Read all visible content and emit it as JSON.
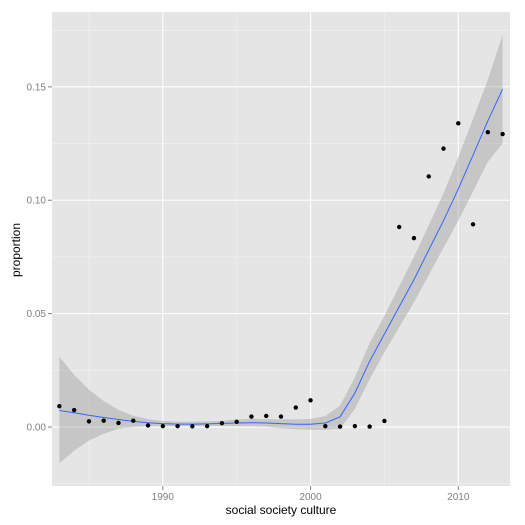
{
  "chart_data": {
    "type": "scatter",
    "xlabel": "social society culture",
    "ylabel": "proportion",
    "xlim": [
      1982.5,
      2013.5
    ],
    "ylim": [
      -0.026,
      0.183
    ],
    "x_ticks": [
      1990,
      2000,
      2010
    ],
    "y_ticks": [
      0.0,
      0.05,
      0.1,
      0.15
    ],
    "x_tick_labels": [
      "1990",
      "2000",
      "2010"
    ],
    "y_tick_labels": [
      "0.00",
      "0.05",
      "0.10",
      "0.15"
    ],
    "grid": true,
    "points": {
      "x": [
        1983,
        1984,
        1985,
        1986,
        1987,
        1988,
        1989,
        1990,
        1991,
        1992,
        1993,
        1994,
        1995,
        1996,
        1997,
        1998,
        1999,
        2000,
        2001,
        2002,
        2003,
        2004,
        2005,
        2006,
        2007,
        2008,
        2009,
        2010,
        2011,
        2012,
        2013
      ],
      "y": [
        0.0092,
        0.0075,
        0.0025,
        0.0028,
        0.0018,
        0.0028,
        0.0007,
        0.0004,
        0.0004,
        0.0003,
        0.0004,
        0.0017,
        0.0023,
        0.0046,
        0.0049,
        0.0046,
        0.0086,
        0.0118,
        0.0004,
        0.0002,
        0.0004,
        0.0002,
        0.0027,
        0.0882,
        0.0833,
        0.1105,
        0.1228,
        0.1339,
        0.0894,
        0.13,
        0.1292
      ],
      "color": "#000000"
    },
    "smooth": {
      "x": [
        1983,
        1984,
        1985,
        1986,
        1987,
        1988,
        1989,
        1990,
        1991,
        1992,
        1993,
        1994,
        1995,
        1996,
        1997,
        1998,
        1999,
        2000,
        2001,
        2002,
        2003,
        2004,
        2005,
        2006,
        2007,
        2008,
        2009,
        2010,
        2011,
        2012,
        2013
      ],
      "y": [
        0.0073,
        0.0063,
        0.0052,
        0.0042,
        0.0033,
        0.0025,
        0.0019,
        0.0015,
        0.0013,
        0.0013,
        0.0014,
        0.0016,
        0.0018,
        0.0019,
        0.0018,
        0.0015,
        0.0012,
        0.0012,
        0.0018,
        0.0045,
        0.015,
        0.029,
        0.041,
        0.053,
        0.065,
        0.078,
        0.091,
        0.105,
        0.12,
        0.135,
        0.149
      ],
      "ymin": [
        -0.016,
        -0.0105,
        -0.006,
        -0.003,
        -0.0008,
        0.0,
        0.0003,
        0.0003,
        0.0003,
        0.0004,
        0.0005,
        0.0004,
        0.0003,
        0.0003,
        0.0001,
        -0.0005,
        -0.001,
        -0.0012,
        -0.0012,
        -0.0007,
        0.008,
        0.021,
        0.033,
        0.044,
        0.055,
        0.067,
        0.079,
        0.091,
        0.104,
        0.117,
        0.125
      ],
      "ymax": [
        0.031,
        0.023,
        0.0165,
        0.0115,
        0.0075,
        0.005,
        0.0035,
        0.0027,
        0.0024,
        0.0024,
        0.0025,
        0.0028,
        0.0033,
        0.0036,
        0.0035,
        0.0034,
        0.0034,
        0.0036,
        0.0048,
        0.0095,
        0.022,
        0.037,
        0.049,
        0.062,
        0.075,
        0.089,
        0.103,
        0.119,
        0.136,
        0.153,
        0.173
      ],
      "line_color": "#3366FF",
      "band_color": "#999999"
    },
    "panel_background": "#e5e5e5",
    "grid_color": "#ffffff"
  }
}
